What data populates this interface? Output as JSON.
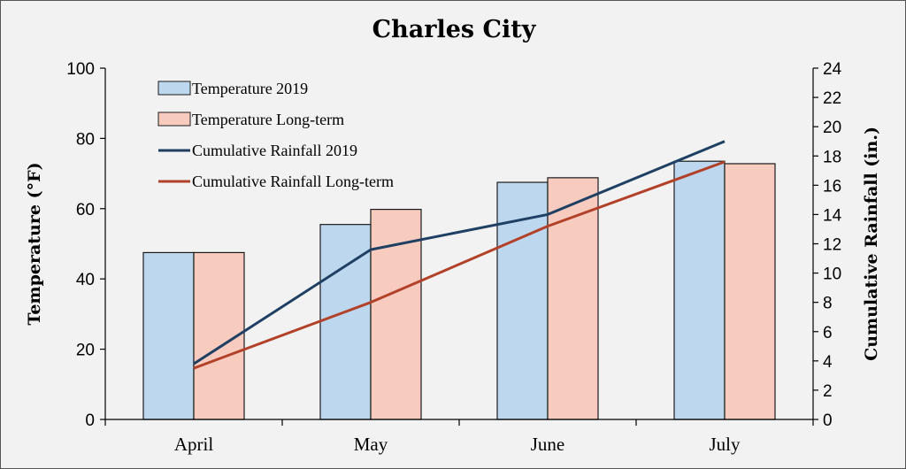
{
  "chart_data": {
    "type": "bar",
    "title": "Charles City",
    "categories": [
      "April",
      "May",
      "June",
      "July"
    ],
    "series": [
      {
        "name": "Temperature 2019",
        "kind": "bar",
        "axis": "left",
        "color": "#bdd7ee",
        "values": [
          47.5,
          55.5,
          67.5,
          73.5
        ]
      },
      {
        "name": "Temperature Long-term",
        "kind": "bar",
        "axis": "left",
        "color": "#f8cbbf",
        "values": [
          47.5,
          59.8,
          68.8,
          72.8
        ]
      },
      {
        "name": "Cumulative Rainfall 2019",
        "kind": "line",
        "axis": "right",
        "color": "#1f3f63",
        "values": [
          3.8,
          11.6,
          14.0,
          19.0
        ]
      },
      {
        "name": "Cumulative Rainfall Long-term",
        "kind": "line",
        "axis": "right",
        "color": "#b2412a",
        "values": [
          3.5,
          8.0,
          13.2,
          17.6
        ]
      }
    ],
    "y_left": {
      "label": "Temperature (°F)",
      "min": 0,
      "max": 100,
      "ticks": [
        0,
        20,
        40,
        60,
        80,
        100
      ]
    },
    "y_right": {
      "label": "Cumulative Rainfall (in.)",
      "min": 0,
      "max": 24,
      "ticks": [
        0,
        2,
        4,
        6,
        8,
        10,
        12,
        14,
        16,
        18,
        20,
        22,
        24
      ]
    },
    "legend_position": "top-left",
    "grid": false
  }
}
